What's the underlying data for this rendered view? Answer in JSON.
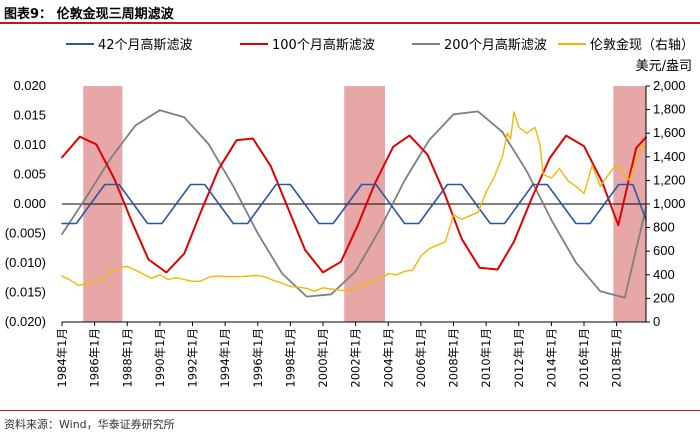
{
  "header": {
    "title": "图表9：  伦敦金现三周期滤波"
  },
  "footer": {
    "source": "资料来源：Wind，华泰证券研究所"
  },
  "colors": {
    "filter42": "#2a56a6",
    "filter100": "#e00000",
    "filter200": "#7f7f7f",
    "gold": "#f2b705",
    "shade": "#e8a7a7",
    "rule": "#b71c1c"
  },
  "chart_data": {
    "type": "line",
    "title": "伦敦金现三周期滤波",
    "y_left": {
      "range": [
        -0.02,
        0.02
      ],
      "ticks": [
        0.02,
        0.015,
        0.01,
        0.005,
        0.0,
        -0.005,
        -0.01,
        -0.015,
        -0.02
      ],
      "tick_labels": [
        "0.020",
        "0.015",
        "0.010",
        "0.005",
        "0.000",
        "(0.005)",
        "(0.010)",
        "(0.015)",
        "(0.020)"
      ]
    },
    "y_right": {
      "label": "美元/盎司",
      "range": [
        0,
        2000
      ],
      "ticks": [
        2000,
        1800,
        1600,
        1400,
        1200,
        1000,
        800,
        600,
        400,
        200,
        0
      ],
      "tick_labels": [
        "2,000",
        "1,800",
        "1,600",
        "1,400",
        "1,200",
        "1,000",
        "800",
        "600",
        "400",
        "200",
        "0"
      ]
    },
    "x_axis": {
      "range": [
        1984.0,
        2019.8
      ],
      "ticks": [
        1984,
        1986,
        1988,
        1990,
        1992,
        1994,
        1996,
        1998,
        2000,
        2002,
        2004,
        2006,
        2008,
        2010,
        2012,
        2014,
        2016,
        2018
      ],
      "tick_labels": [
        "1984年1月",
        "1986年1月",
        "1988年1月",
        "1990年1月",
        "1992年1月",
        "1994年1月",
        "1996年1月",
        "1998年1月",
        "2000年1月",
        "2002年1月",
        "2004年1月",
        "2006年1月",
        "2008年1月",
        "2010年1月",
        "2012年1月",
        "2014年1月",
        "2016年1月",
        "2018年1月"
      ]
    },
    "shaded_periods": [
      [
        1985.3,
        1987.7
      ],
      [
        2001.3,
        2003.8
      ],
      [
        2017.8,
        2019.8
      ]
    ],
    "legend": [
      "42个月高斯滤波",
      "100个月高斯滤波",
      "200个月高斯滤波",
      "伦敦金现（右轴）"
    ],
    "series": [
      {
        "name": "42个月高斯滤波",
        "axis": "left",
        "x": [
          1984.0,
          1984.875,
          1985.75,
          1986.625,
          1987.5,
          1988.375,
          1989.25,
          1990.125,
          1991.0,
          1991.875,
          1992.75,
          1993.625,
          1994.5,
          1995.375,
          1996.25,
          1997.125,
          1998.0,
          1998.875,
          1999.75,
          2000.625,
          2001.5,
          2002.375,
          2003.25,
          2004.125,
          2005.0,
          2005.875,
          2006.75,
          2007.625,
          2008.5,
          2009.375,
          2010.25,
          2011.125,
          2012.0,
          2012.875,
          2013.75,
          2014.625,
          2015.5,
          2016.375,
          2017.25,
          2018.125,
          2019.0,
          2019.8
        ],
        "y": [
          -0.0033,
          -0.0033,
          0.0,
          0.0033,
          0.0033,
          0.0,
          -0.0033,
          -0.0033,
          0.0,
          0.0033,
          0.0033,
          0.0,
          -0.0033,
          -0.0033,
          0.0,
          0.0033,
          0.0033,
          0.0,
          -0.0033,
          -0.0033,
          0.0,
          0.0033,
          0.0033,
          0.0,
          -0.0033,
          -0.0033,
          0.0,
          0.0033,
          0.0033,
          0.0,
          -0.0033,
          -0.0033,
          0.0,
          0.0033,
          0.0033,
          0.0,
          -0.0033,
          -0.0033,
          0.0,
          0.0033,
          0.0033,
          -0.0027
        ]
      },
      {
        "name": "100个月高斯滤波",
        "axis": "left",
        "x": [
          1984.0,
          1985.1,
          1986.1,
          1987.2,
          1988.3,
          1989.3,
          1990.4,
          1991.5,
          1992.5,
          1993.6,
          1994.7,
          1995.7,
          1996.8,
          1997.9,
          1998.9,
          2000.0,
          2001.1,
          2002.1,
          2003.2,
          2004.3,
          2005.3,
          2006.4,
          2007.5,
          2008.5,
          2009.6,
          2010.7,
          2011.7,
          2012.8,
          2013.9,
          2014.9,
          2016.0,
          2017.1,
          2018.1,
          2019.2,
          2019.8
        ],
        "y": [
          0.0079,
          0.0114,
          0.0101,
          0.0043,
          -0.0031,
          -0.0094,
          -0.0116,
          -0.0084,
          -0.0014,
          0.0059,
          0.0108,
          0.0111,
          0.0064,
          -0.001,
          -0.0078,
          -0.0116,
          -0.0098,
          -0.0038,
          0.0036,
          0.0097,
          0.0116,
          0.0084,
          0.0014,
          -0.0059,
          -0.0108,
          -0.0111,
          -0.0064,
          0.001,
          0.0078,
          0.0116,
          0.0098,
          0.0038,
          -0.0036,
          0.0095,
          0.0113
        ]
      },
      {
        "name": "200个月高斯滤波",
        "axis": "left",
        "x": [
          1984.0,
          1985.5,
          1987.0,
          1988.5,
          1990.0,
          1991.5,
          1993.0,
          1994.5,
          1996.0,
          1997.5,
          1999.0,
          2000.5,
          2002.0,
          2003.5,
          2005.0,
          2006.5,
          2008.0,
          2009.5,
          2011.0,
          2012.5,
          2014.0,
          2015.5,
          2017.0,
          2018.5,
          2019.8
        ],
        "y": [
          -0.0051,
          0.0012,
          0.0078,
          0.0133,
          0.0159,
          0.0147,
          0.0101,
          0.003,
          -0.005,
          -0.0118,
          -0.0157,
          -0.0153,
          -0.0114,
          -0.0042,
          0.004,
          0.0108,
          0.0152,
          0.0157,
          0.0122,
          0.0055,
          -0.0027,
          -0.0099,
          -0.0148,
          -0.0159,
          -0.0006
        ]
      },
      {
        "name": "伦敦金现（右轴）",
        "axis": "right",
        "x": [
          1984.0,
          1984.5,
          1985.0,
          1985.5,
          1986.0,
          1986.5,
          1987.0,
          1987.5,
          1988.0,
          1988.5,
          1989.0,
          1989.5,
          1990.0,
          1990.5,
          1991.0,
          1991.5,
          1992.0,
          1992.5,
          1993.0,
          1993.5,
          1994.0,
          1994.5,
          1995.0,
          1995.5,
          1996.0,
          1996.5,
          1997.0,
          1997.5,
          1998.0,
          1998.5,
          1999.0,
          1999.5,
          2000.0,
          2000.5,
          2001.0,
          2001.5,
          2002.0,
          2002.5,
          2003.0,
          2003.5,
          2004.0,
          2004.5,
          2005.0,
          2005.5,
          2006.0,
          2006.5,
          2007.0,
          2007.5,
          2008.0,
          2008.5,
          2009.0,
          2009.5,
          2010.0,
          2010.5,
          2011.0,
          2011.3,
          2011.5,
          2011.7,
          2012.0,
          2012.5,
          2013.0,
          2013.3,
          2013.5,
          2014.0,
          2014.5,
          2015.0,
          2015.5,
          2016.0,
          2016.5,
          2017.0,
          2017.5,
          2018.0,
          2018.5,
          2018.8,
          2019.0,
          2019.4,
          2019.6,
          2019.8
        ],
        "y": [
          390,
          355,
          310,
          325,
          345,
          360,
          430,
          460,
          470,
          440,
          405,
          370,
          400,
          360,
          375,
          360,
          345,
          345,
          380,
          390,
          385,
          385,
          385,
          390,
          395,
          380,
          350,
          330,
          300,
          295,
          285,
          260,
          290,
          280,
          270,
          265,
          290,
          310,
          350,
          360,
          410,
          400,
          430,
          440,
          560,
          620,
          650,
          680,
          910,
          870,
          900,
          930,
          1100,
          1230,
          1400,
          1600,
          1550,
          1780,
          1650,
          1600,
          1650,
          1500,
          1250,
          1220,
          1300,
          1200,
          1150,
          1090,
          1330,
          1150,
          1250,
          1340,
          1250,
          1200,
          1300,
          1420,
          1500,
          1480
        ]
      }
    ]
  }
}
